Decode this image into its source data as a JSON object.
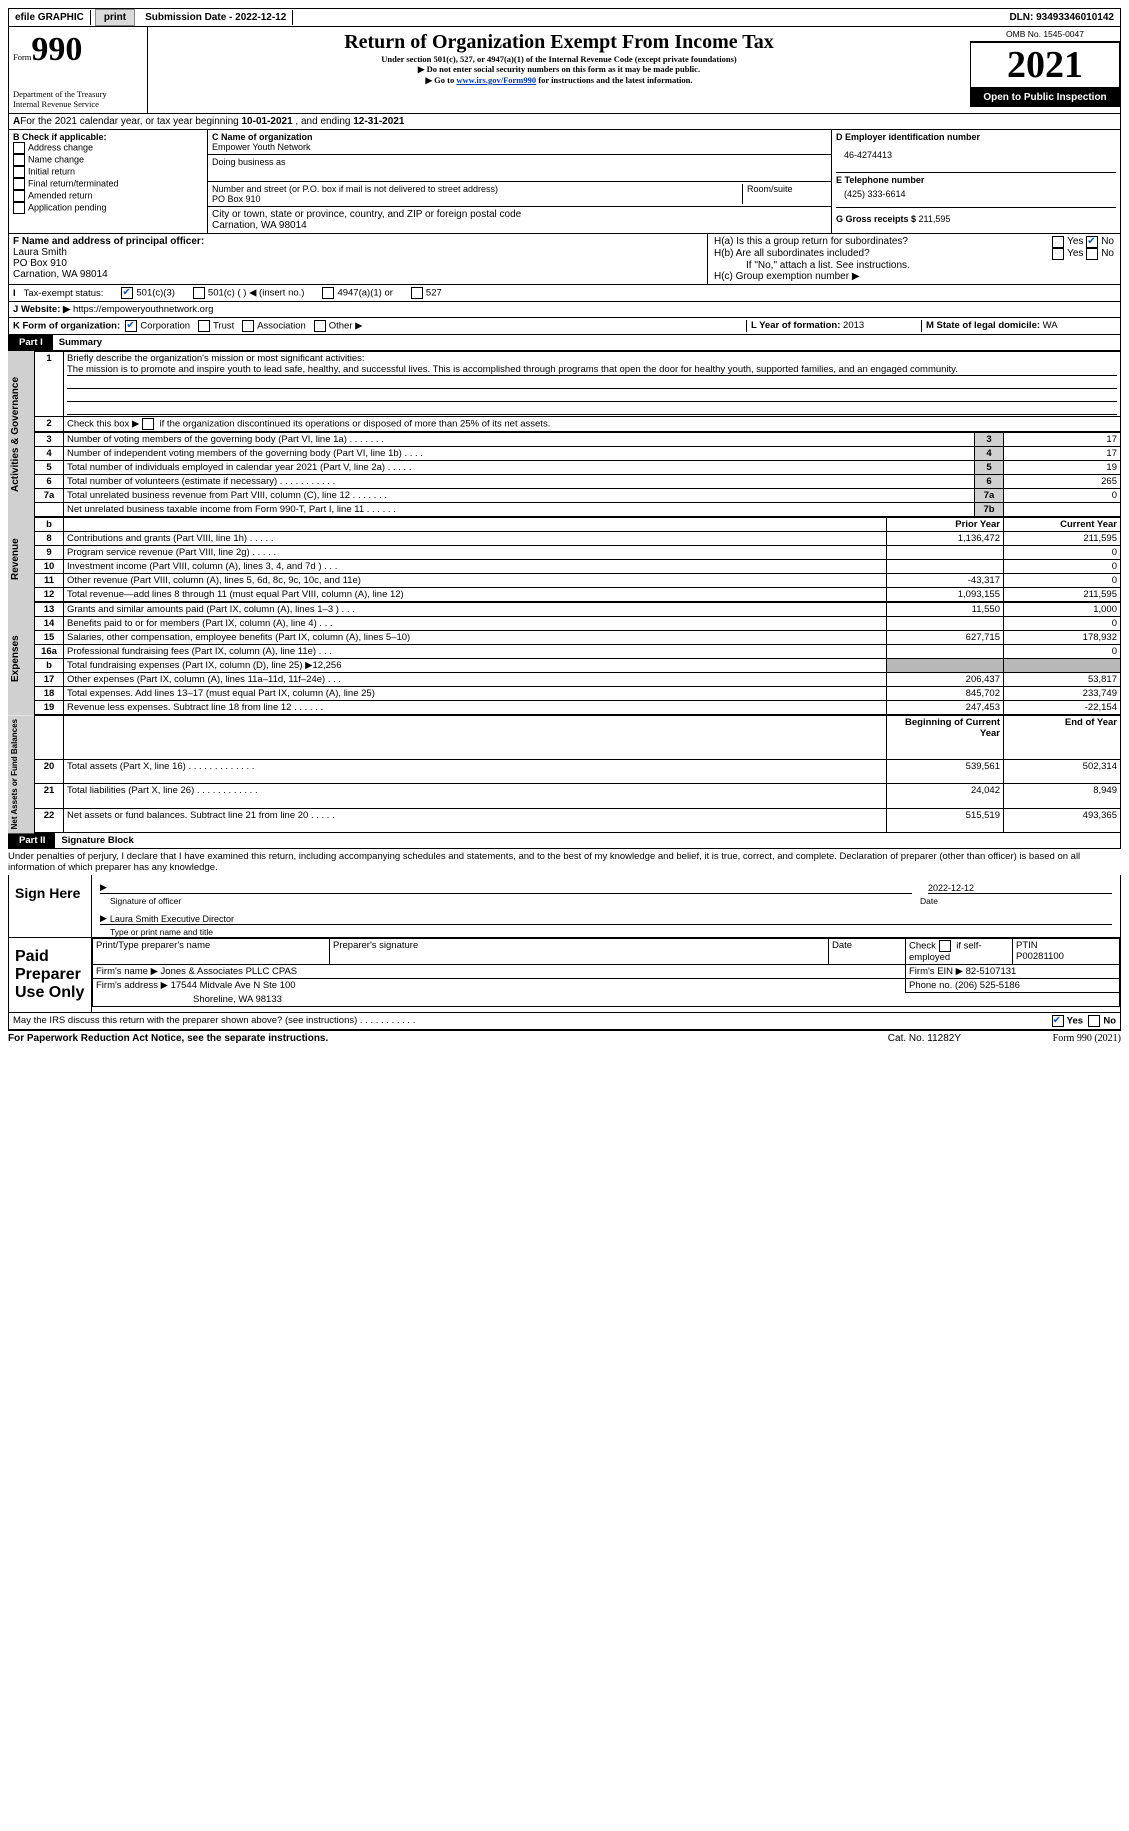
{
  "topbar": {
    "efile": "efile GRAPHIC",
    "print": "print",
    "subdate_label": "Submission Date - ",
    "subdate": "2022-12-12",
    "dln_label": "DLN: ",
    "dln": "93493346010142"
  },
  "header": {
    "form_prefix": "Form",
    "form_no": "990",
    "dept": "Department of the Treasury\nInternal Revenue Service",
    "title": "Return of Organization Exempt From Income Tax",
    "sub1": "Under section 501(c), 527, or 4947(a)(1) of the Internal Revenue Code (except private foundations)",
    "sub2": "▶ Do not enter social security numbers on this form as it may be made public.",
    "sub3_pre": "▶ Go to ",
    "sub3_link": "www.irs.gov/Form990",
    "sub3_post": " for instructions and the latest information.",
    "omb": "OMB No. 1545-0047",
    "year": "2021",
    "open": "Open to Public Inspection"
  },
  "lineA": {
    "text": "For the 2021 calendar year, or tax year beginning ",
    "begin": "10-01-2021",
    "mid": " , and ending ",
    "end": "12-31-2021"
  },
  "boxB": {
    "title": "B Check if applicable:",
    "items": [
      "Address change",
      "Name change",
      "Initial return",
      "Final return/terminated",
      "Amended return",
      "Application pending"
    ]
  },
  "boxC": {
    "label": "C Name of organization",
    "org": "Empower Youth Network",
    "dba": "Doing business as",
    "addr_label": "Number and street (or P.O. box if mail is not delivered to street address)",
    "room": "Room/suite",
    "addr": "PO Box 910",
    "city_label": "City or town, state or province, country, and ZIP or foreign postal code",
    "city": "Carnation, WA  98014"
  },
  "boxD": {
    "label": "D Employer identification number",
    "ein": "46-4274413"
  },
  "boxE": {
    "label": "E Telephone number",
    "phone": "(425) 333-6614"
  },
  "boxG": {
    "label": "G Gross receipts $ ",
    "val": "211,595"
  },
  "boxF": {
    "label": "F  Name and address of principal officer:",
    "name": "Laura Smith",
    "addr": "PO Box 910",
    "city": "Carnation, WA  98014"
  },
  "boxH": {
    "a": "H(a)  Is this a group return for subordinates?",
    "b": "H(b)  Are all subordinates included?",
    "bno": "If \"No,\" attach a list. See instructions.",
    "c": "H(c)  Group exemption number ▶",
    "yes": "Yes",
    "no": "No"
  },
  "taxI": {
    "label": "Tax-exempt status:",
    "c3": "501(c)(3)",
    "c": "501(c) (  ) ◀ (insert no.)",
    "a1": "4947(a)(1) or",
    "s527": "527"
  },
  "siteJ": {
    "label": "Website: ▶ ",
    "url": "https://empoweryouthnetwork.org"
  },
  "lineK": {
    "label": "K Form of organization:",
    "corp": "Corporation",
    "trust": "Trust",
    "assoc": "Association",
    "other": "Other ▶"
  },
  "lineL": {
    "label": "L Year of formation: ",
    "val": "2013"
  },
  "lineM": {
    "label": "M State of legal domicile: ",
    "val": "WA"
  },
  "part1": {
    "label": "Part I",
    "title": "Summary"
  },
  "s1": {
    "n": "1",
    "label": "Briefly describe the organization's mission or most significant activities:",
    "text": "The mission is to promote and inspire youth to lead safe, healthy, and successful lives. This is accomplished through programs that open the door for healthy youth, supported families, and an engaged community."
  },
  "s2": {
    "n": "2",
    "label": "Check this box ▶",
    "label2": " if the organization discontinued its operations or disposed of more than 25% of its net assets."
  },
  "lines": [
    {
      "n": "3",
      "label": "Number of voting members of the governing body (Part VI, line 1a)   .     .     .     .     .     .     .",
      "box": "3",
      "val": "17"
    },
    {
      "n": "4",
      "label": "Number of independent voting members of the governing body (Part VI, line 1b)   .     .     .     .",
      "box": "4",
      "val": "17"
    },
    {
      "n": "5",
      "label": "Total number of individuals employed in calendar year 2021 (Part V, line 2a)   .     .     .     .     .",
      "box": "5",
      "val": "19"
    },
    {
      "n": "6",
      "label": "Total number of volunteers (estimate if necessary)     .     .     .     .     .     .     .     .     .     .     .",
      "box": "6",
      "val": "265"
    },
    {
      "n": "7a",
      "label": "Total unrelated business revenue from Part VIII, column (C), line 12     .     .     .     .     .     .     .",
      "box": "7a",
      "val": "0"
    },
    {
      "n": "",
      "label": "Net unrelated business taxable income from Form 990-T, Part I, line 11   .     .     .     .     .     .",
      "box": "7b",
      "val": ""
    }
  ],
  "colhdr": {
    "prior": "Prior Year",
    "curr": "Current Year",
    "begin": "Beginning of Current Year",
    "end": "End of Year"
  },
  "rev": [
    {
      "n": "8",
      "label": "Contributions and grants (Part VIII, line 1h)     .     .     .     .     .",
      "p": "1,136,472",
      "c": "211,595"
    },
    {
      "n": "9",
      "label": "Program service revenue (Part VIII, line 2g)     .     .     .     .     .",
      "p": "",
      "c": "0"
    },
    {
      "n": "10",
      "label": "Investment income (Part VIII, column (A), lines 3, 4, and 7d )     .     .     .",
      "p": "",
      "c": "0"
    },
    {
      "n": "11",
      "label": "Other revenue (Part VIII, column (A), lines 5, 6d, 8c, 9c, 10c, and 11e)",
      "p": "-43,317",
      "c": "0"
    },
    {
      "n": "12",
      "label": "Total revenue—add lines 8 through 11 (must equal Part VIII, column (A), line 12)",
      "p": "1,093,155",
      "c": "211,595"
    }
  ],
  "exp": [
    {
      "n": "13",
      "label": "Grants and similar amounts paid (Part IX, column (A), lines 1–3 )   .     .     .",
      "p": "11,550",
      "c": "1,000"
    },
    {
      "n": "14",
      "label": "Benefits paid to or for members (Part IX, column (A), line 4)   .     .     .",
      "p": "",
      "c": "0"
    },
    {
      "n": "15",
      "label": "Salaries, other compensation, employee benefits (Part IX, column (A), lines 5–10)",
      "p": "627,715",
      "c": "178,932"
    },
    {
      "n": "16a",
      "label": "Professional fundraising fees (Part IX, column (A), line 11e)   .     .     .",
      "p": "",
      "c": "0"
    },
    {
      "n": "b",
      "label": "Total fundraising expenses (Part IX, column (D), line 25) ▶12,256",
      "shade": true
    },
    {
      "n": "17",
      "label": "Other expenses (Part IX, column (A), lines 11a–11d, 11f–24e)   .     .     .",
      "p": "206,437",
      "c": "53,817"
    },
    {
      "n": "18",
      "label": "Total expenses. Add lines 13–17 (must equal Part IX, column (A), line 25)",
      "p": "845,702",
      "c": "233,749"
    },
    {
      "n": "19",
      "label": "Revenue less expenses. Subtract line 18 from line 12   .     .     .     .     .     .",
      "p": "247,453",
      "c": "-22,154"
    }
  ],
  "net": [
    {
      "n": "20",
      "label": "Total assets (Part X, line 16)   .     .     .     .     .     .     .     .     .     .     .     .     .",
      "p": "539,561",
      "c": "502,314"
    },
    {
      "n": "21",
      "label": "Total liabilities (Part X, line 26)   .     .     .     .     .     .     .     .     .     .     .     .",
      "p": "24,042",
      "c": "8,949"
    },
    {
      "n": "22",
      "label": "Net assets or fund balances. Subtract line 21 from line 20   .     .     .     .     .",
      "p": "515,519",
      "c": "493,365"
    }
  ],
  "vlabels": {
    "act": "Activities & Governance",
    "rev": "Revenue",
    "exp": "Expenses",
    "net": "Net Assets or Fund Balances"
  },
  "part2": {
    "label": "Part II",
    "title": "Signature Block",
    "decl": "Under penalties of perjury, I declare that I have examined this return, including accompanying schedules and statements, and to the best of my knowledge and belief, it is true, correct, and complete. Declaration of preparer (other than officer) is based on all information of which preparer has any knowledge."
  },
  "sign": {
    "here": "Sign Here",
    "sigoff": "Signature of officer",
    "date": "Date",
    "sigdate": "2022-12-12",
    "name": "Laura Smith  Executive Director",
    "typ": "Type or print name and title"
  },
  "paid": {
    "label": "Paid Preparer Use Only",
    "h1": "Print/Type preparer's name",
    "h2": "Preparer's signature",
    "h3": "Date",
    "h4_pre": "Check",
    "h4": " if self-employed",
    "h5": "PTIN",
    "ptin": "P00281100",
    "firm_l": "Firm's name    ▶",
    "firm": "Jones & Associates PLLC CPAS",
    "ein_l": "Firm's EIN ▶",
    "ein": "82-5107131",
    "addr_l": "Firm's address ▶",
    "addr": "17544 Midvale Ave N Ste 100",
    "city": "Shoreline, WA  98133",
    "ph_l": "Phone no. ",
    "ph": "(206) 525-5186"
  },
  "discuss": {
    "q": "May the IRS discuss this return with the preparer shown above? (see instructions)    .     .     .     .     .     .     .     .     .     .     .",
    "yes": "Yes",
    "no": "No"
  },
  "foot": {
    "pra": "For Paperwork Reduction Act Notice, see the separate instructions.",
    "cat": "Cat. No. 11282Y",
    "form": "Form 990 (2021)"
  }
}
